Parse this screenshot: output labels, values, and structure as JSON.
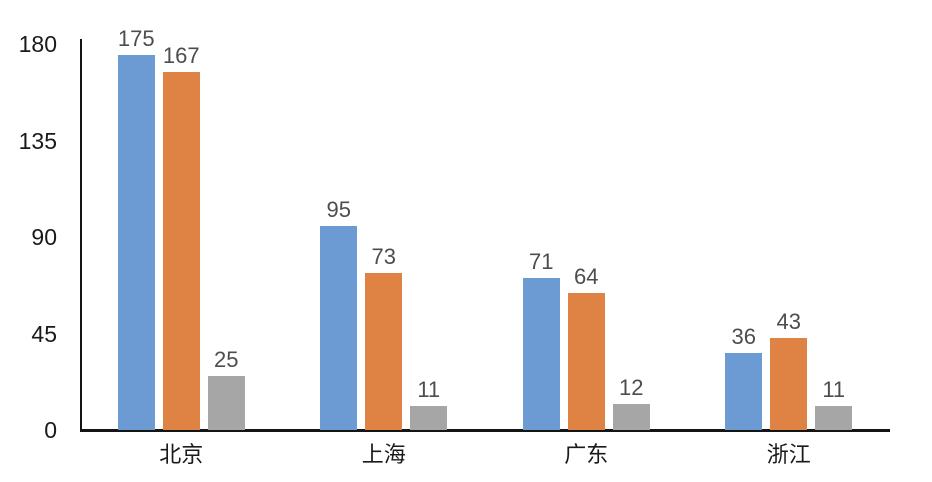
{
  "chart_data": {
    "type": "bar",
    "categories": [
      "北京",
      "上海",
      "广东",
      "浙江"
    ],
    "series": [
      {
        "name": "series-blue",
        "color": "#6B9BD2",
        "values": [
          175,
          95,
          71,
          36
        ]
      },
      {
        "name": "series-orange",
        "color": "#DE8344",
        "values": [
          167,
          73,
          64,
          43
        ]
      },
      {
        "name": "series-gray",
        "color": "#A6A6A6",
        "values": [
          25,
          11,
          12,
          11
        ]
      }
    ],
    "title": "",
    "xlabel": "",
    "ylabel": "",
    "ylim": [
      0,
      180
    ],
    "yticks": [
      180,
      135,
      90,
      45,
      0
    ],
    "grid": false,
    "legend_position": "none",
    "value_labels_shown": true,
    "colors": {
      "axis": "#141414",
      "value_label": "#4D4D4D",
      "tick_label": "#1A1A1A",
      "category_label": "#1A1A1A",
      "background": "#FFFFFF"
    }
  }
}
